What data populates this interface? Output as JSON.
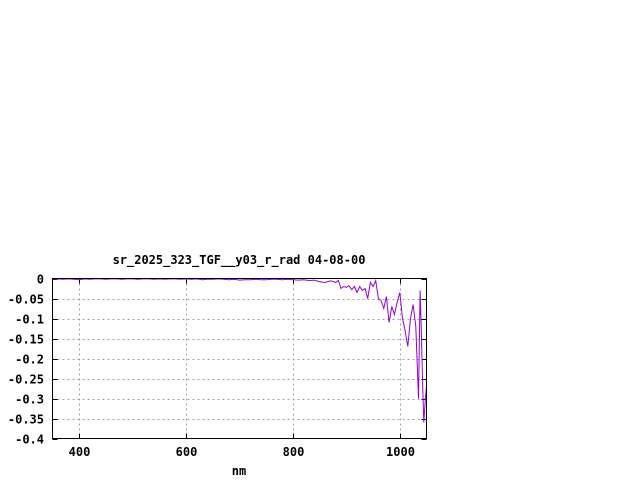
{
  "chart_data": {
    "type": "line",
    "title": "sr_2025_323_TGF__y03_r_rad 04-08-00",
    "xlabel": "nm",
    "ylabel": "",
    "xlim": [
      350,
      1050
    ],
    "ylim": [
      -0.4,
      0
    ],
    "xticks": [
      400,
      600,
      800,
      1000
    ],
    "yticks": [
      0,
      -0.05,
      -0.1,
      -0.15,
      -0.2,
      -0.25,
      -0.3,
      -0.35,
      -0.4
    ],
    "ytick_labels": [
      "0",
      "-0.05",
      "-0.1",
      "-0.15",
      "-0.2",
      "-0.25",
      "-0.3",
      "-0.35",
      "-0.4"
    ],
    "xtick_labels": [
      "400",
      "600",
      "800",
      "1000"
    ],
    "grid": true,
    "line_color": "#9400d3",
    "series": [
      {
        "x": [
          350,
          360,
          370,
          380,
          390,
          400,
          410,
          420,
          430,
          440,
          450,
          460,
          470,
          480,
          490,
          500,
          510,
          520,
          530,
          540,
          550,
          560,
          570,
          580,
          590,
          600,
          610,
          620,
          630,
          640,
          650,
          660,
          670,
          680,
          690,
          700,
          710,
          720,
          730,
          740,
          750,
          760,
          770,
          780,
          790,
          800,
          810,
          820,
          830,
          840,
          850,
          860,
          870,
          875,
          880,
          885,
          890,
          895,
          900,
          905,
          910,
          915,
          920,
          925,
          930,
          935,
          940,
          945,
          950,
          955,
          960,
          965,
          970,
          975,
          980,
          985,
          990,
          995,
          1000,
          1005,
          1010,
          1015,
          1020,
          1025,
          1030,
          1035,
          1038,
          1040,
          1043,
          1045,
          1048,
          1050
        ],
        "y": [
          -0.002,
          -0.001,
          -0.002,
          -0.001,
          -0.002,
          -0.003,
          -0.001,
          -0.002,
          -0.001,
          -0.001,
          -0.002,
          -0.001,
          -0.001,
          -0.002,
          -0.001,
          -0.001,
          -0.002,
          -0.001,
          -0.001,
          -0.002,
          -0.001,
          -0.002,
          -0.001,
          -0.001,
          -0.002,
          -0.001,
          -0.002,
          -0.001,
          -0.003,
          -0.002,
          -0.002,
          -0.001,
          -0.002,
          -0.003,
          -0.002,
          -0.004,
          -0.003,
          -0.003,
          -0.002,
          -0.003,
          -0.003,
          -0.002,
          -0.002,
          -0.003,
          -0.002,
          -0.003,
          -0.004,
          -0.003,
          -0.005,
          -0.004,
          -0.008,
          -0.01,
          -0.006,
          -0.007,
          -0.01,
          -0.005,
          -0.025,
          -0.02,
          -0.022,
          -0.018,
          -0.028,
          -0.02,
          -0.035,
          -0.02,
          -0.03,
          -0.025,
          -0.05,
          -0.01,
          -0.02,
          -0.005,
          -0.05,
          -0.055,
          -0.075,
          -0.045,
          -0.11,
          -0.07,
          -0.09,
          -0.06,
          -0.035,
          -0.1,
          -0.13,
          -0.17,
          -0.1,
          -0.065,
          -0.12,
          -0.3,
          -0.03,
          -0.12,
          -0.28,
          -0.36,
          -0.3,
          -0.27
        ]
      }
    ]
  }
}
